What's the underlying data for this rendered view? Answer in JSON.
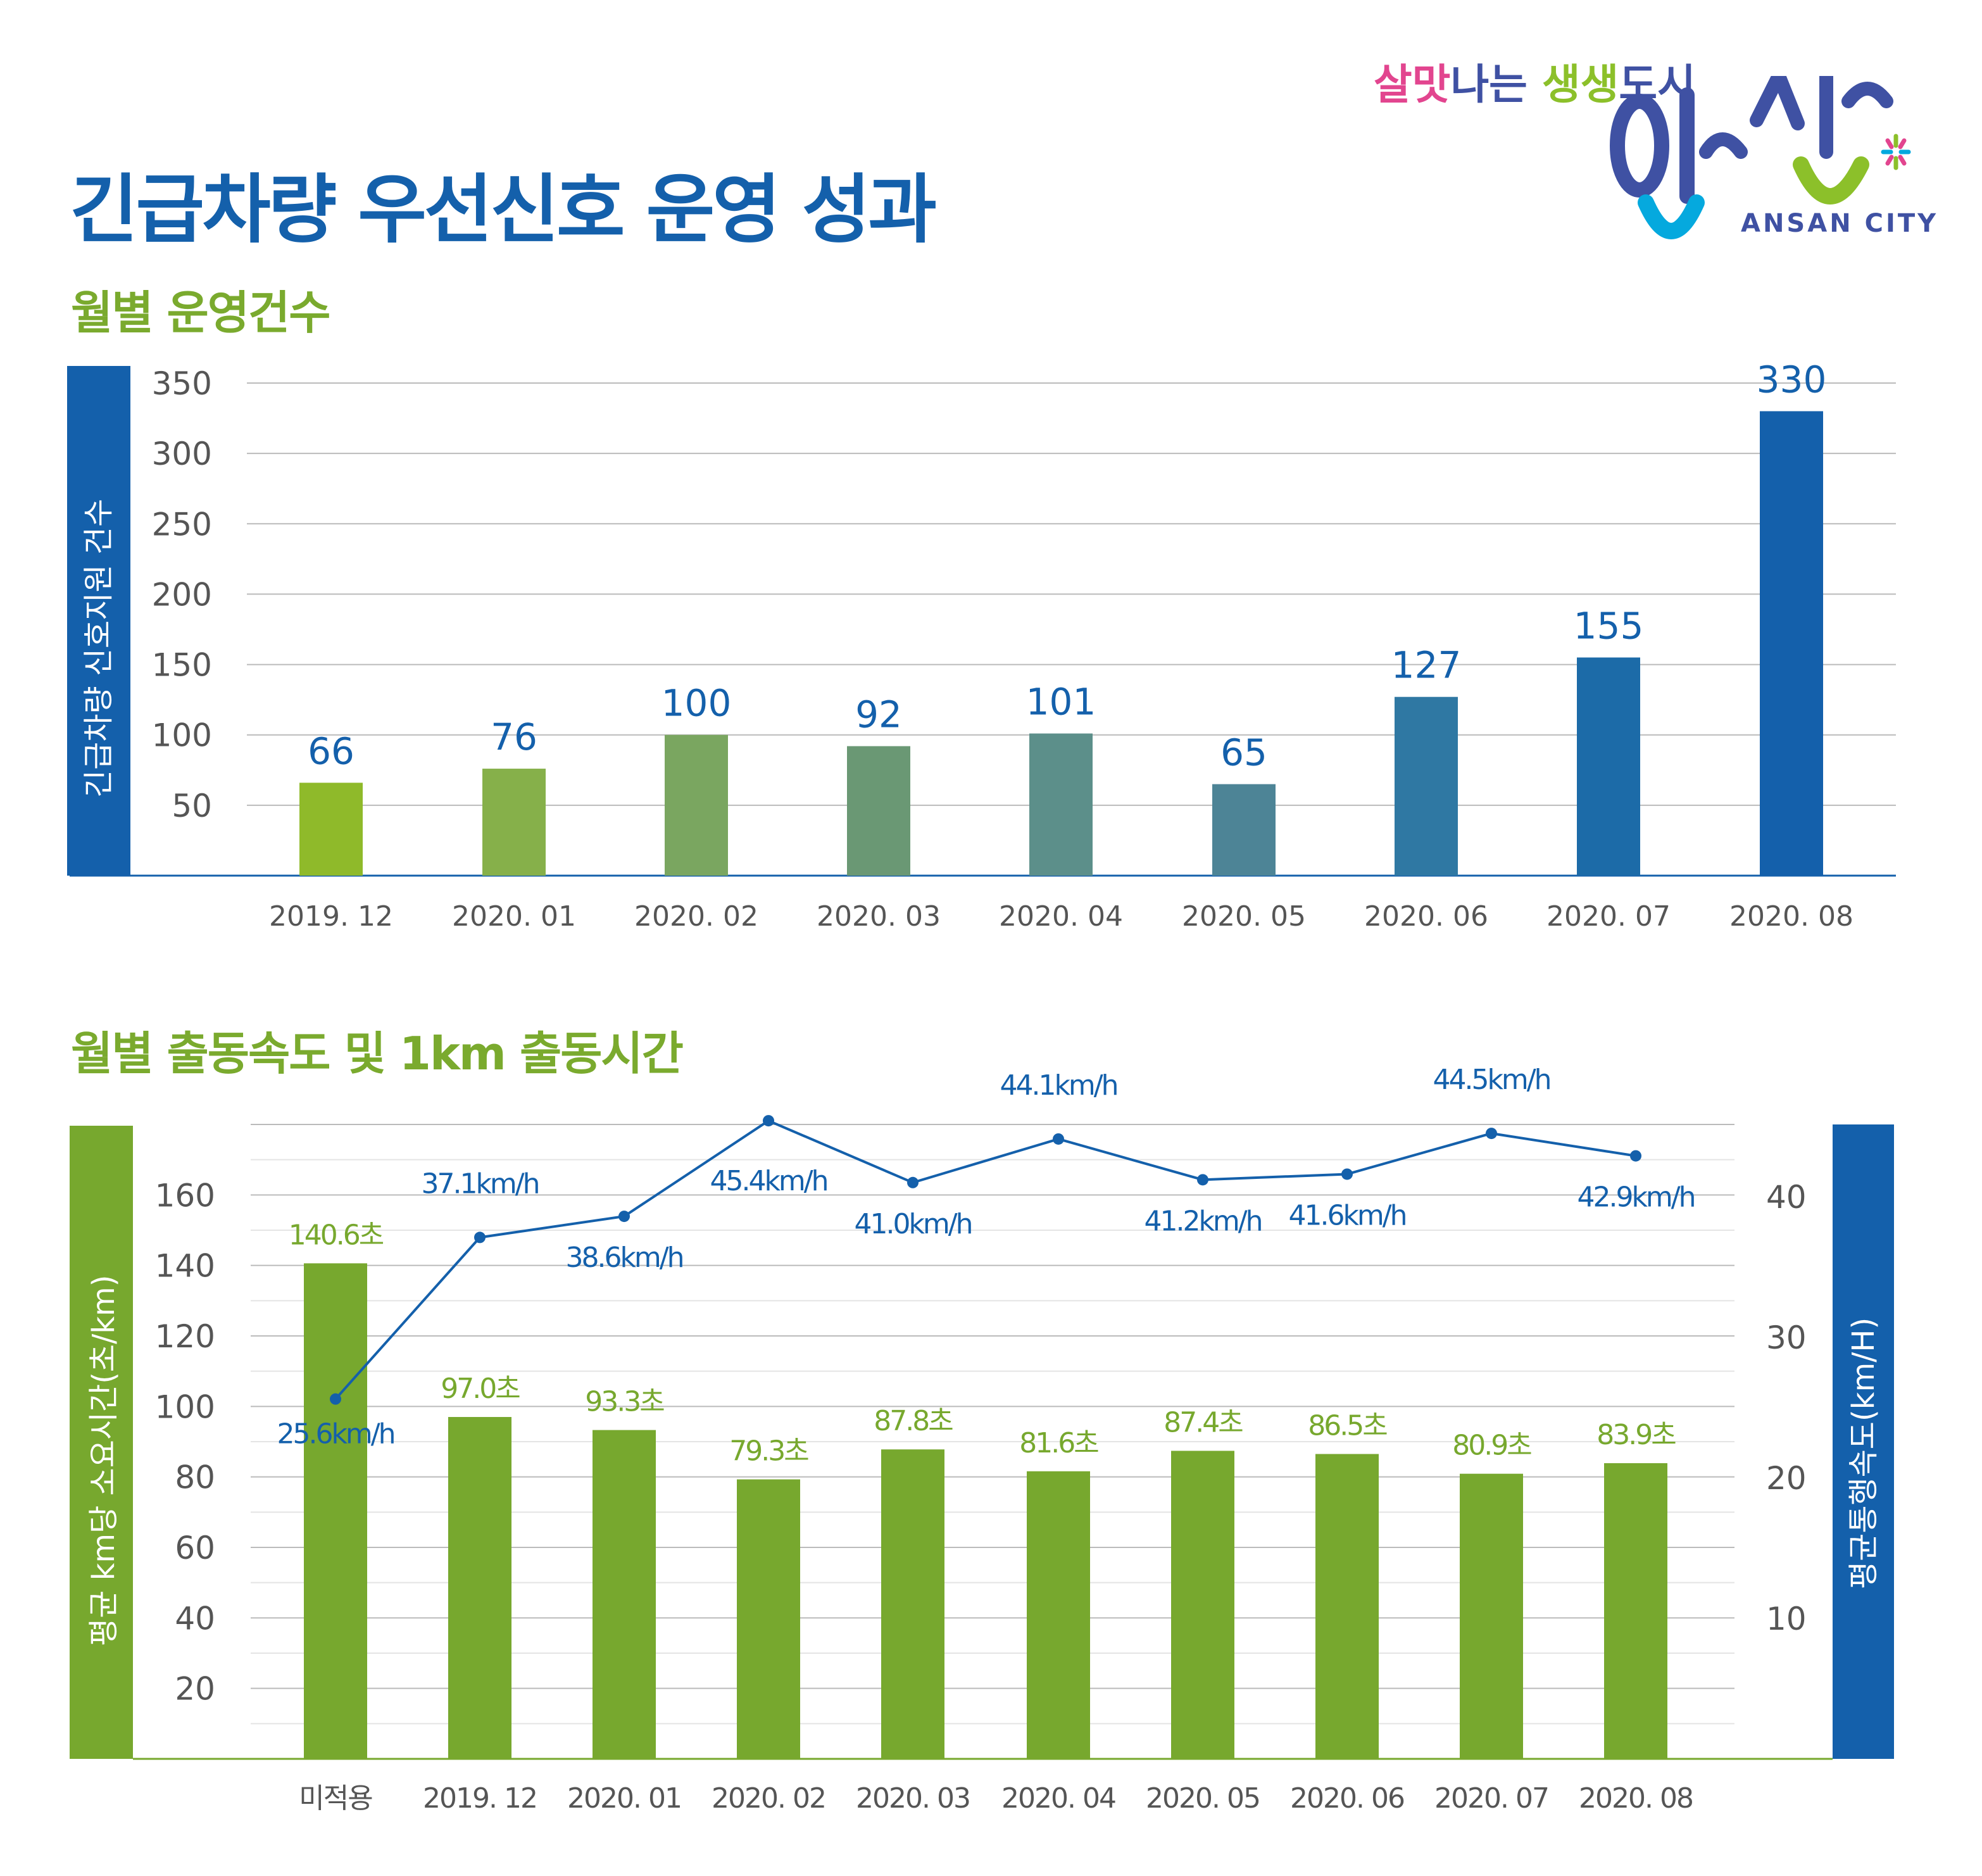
{
  "title": "긴급차량 우선신호 운영 성과",
  "logo": {
    "slogan_parts": [
      {
        "text": "살맛",
        "color": "#e2458f"
      },
      {
        "text": "나는 ",
        "color": "#3f51a3"
      },
      {
        "text": "생생",
        "color": "#8cc02a"
      },
      {
        "text": "도시",
        "color": "#3f51a3"
      }
    ],
    "name": "안산",
    "english": "ANSAN CITY"
  },
  "chart_data": [
    {
      "type": "bar",
      "title": "월별 운영건수",
      "ylabel": "긴급차량 신호지원 건수",
      "ylim": [
        0,
        350
      ],
      "yticks": [
        50,
        100,
        150,
        200,
        250,
        300,
        350
      ],
      "grid": true,
      "categories": [
        "2019. 12",
        "2020. 01",
        "2020. 02",
        "2020. 03",
        "2020. 04",
        "2020. 05",
        "2020. 06",
        "2020. 07",
        "2020. 08"
      ],
      "values": [
        66,
        76,
        100,
        92,
        101,
        65,
        127,
        155,
        330
      ],
      "colors": [
        "#8fba2a",
        "#86b04a",
        "#7aa660",
        "#6a9874",
        "#5c8f8a",
        "#4d8496",
        "#2f78a3",
        "#1c6ba8",
        "#1460ab"
      ]
    },
    {
      "type": "bar+line",
      "title": "월별 출동속도 및 1km 출동시간",
      "ylabel": "평균 km당 소요시간(초/km)",
      "y2label": "평균통행속도(km/H)",
      "ylim": [
        0,
        180
      ],
      "yticks": [
        20,
        40,
        60,
        80,
        100,
        120,
        140,
        160
      ],
      "y2lim": [
        0,
        45
      ],
      "y2ticks": [
        10,
        20,
        30,
        40
      ],
      "grid": true,
      "categories": [
        "미적용",
        "2019. 12",
        "2020. 01",
        "2020. 02",
        "2020. 03",
        "2020. 04",
        "2020. 05",
        "2020. 06",
        "2020. 07",
        "2020. 08"
      ],
      "bar_values": [
        140.6,
        97.0,
        93.3,
        79.3,
        87.8,
        81.6,
        87.4,
        86.5,
        80.9,
        83.9
      ],
      "bar_labels": [
        "140.6초",
        "97.0초",
        "93.3초",
        "79.3초",
        "87.8초",
        "81.6초",
        "87.4초",
        "86.5초",
        "80.9초",
        "83.9초"
      ],
      "line_values": [
        25.6,
        37.1,
        38.6,
        45.4,
        41.0,
        44.1,
        41.2,
        41.6,
        44.5,
        42.9
      ],
      "line_labels": [
        "25.6km/h",
        "37.1km/h",
        "38.6km/h",
        "45.4km/h",
        "41.0km/h",
        "44.1km/h",
        "41.2km/h",
        "41.6km/h",
        "44.5km/h",
        "42.9km/h"
      ],
      "bar_color": "#77a82e",
      "line_color": "#1460ab"
    }
  ]
}
